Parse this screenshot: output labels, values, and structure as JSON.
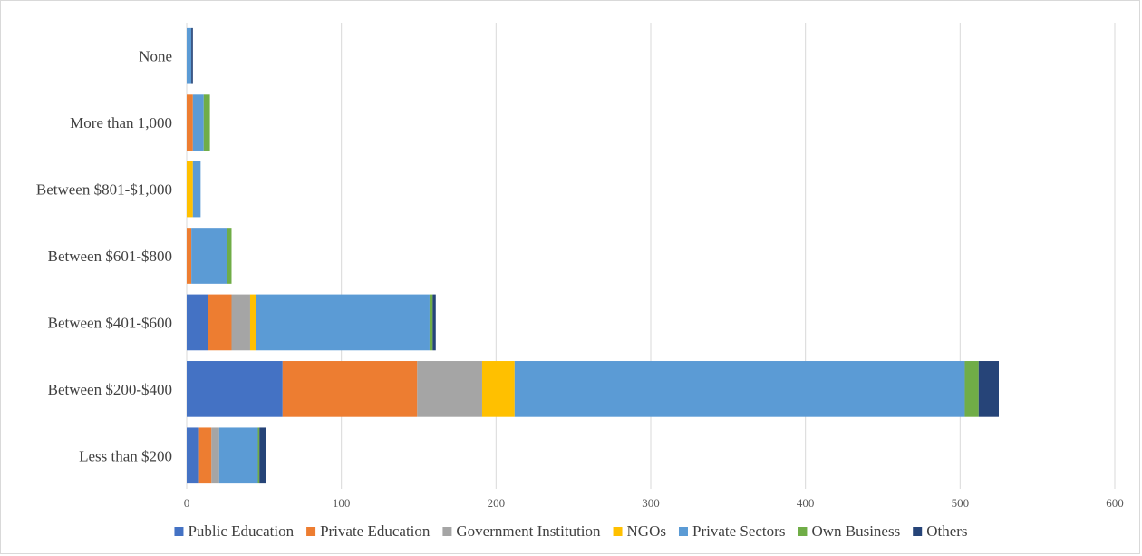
{
  "chart_data": {
    "type": "bar",
    "orientation": "horizontal",
    "stacked": true,
    "title": "",
    "xlabel": "",
    "ylabel": "",
    "categories": [
      "Less than $200",
      "Between $200-$400",
      "Between $401-$600",
      "Between $601-$800",
      "Between $801-$1,000",
      "More than 1,000",
      "None"
    ],
    "xlim": [
      0,
      600
    ],
    "xticks": [
      0,
      100,
      200,
      300,
      400,
      500,
      600
    ],
    "grid": true,
    "legend_position": "bottom",
    "series": [
      {
        "name": "Public Education",
        "color": "#4472C4",
        "values": [
          8,
          62,
          14,
          0,
          0,
          0,
          0
        ]
      },
      {
        "name": "Private Education",
        "color": "#ED7D31",
        "values": [
          8,
          87,
          15,
          3,
          0,
          4,
          0
        ]
      },
      {
        "name": "Government Institution",
        "color": "#A5A5A5",
        "values": [
          5,
          42,
          12,
          0,
          0,
          0,
          0
        ]
      },
      {
        "name": "NGOs",
        "color": "#FFC000",
        "values": [
          0,
          21,
          4,
          0,
          4,
          0,
          0
        ]
      },
      {
        "name": "Private Sectors",
        "color": "#5B9BD5",
        "values": [
          25,
          291,
          112,
          23,
          5,
          7,
          3
        ]
      },
      {
        "name": "Own Business",
        "color": "#70AD47",
        "values": [
          1,
          9,
          2,
          3,
          0,
          4,
          0
        ]
      },
      {
        "name": "Others",
        "color": "#264478",
        "values": [
          4,
          13,
          2,
          0,
          0,
          0,
          1
        ]
      }
    ]
  }
}
